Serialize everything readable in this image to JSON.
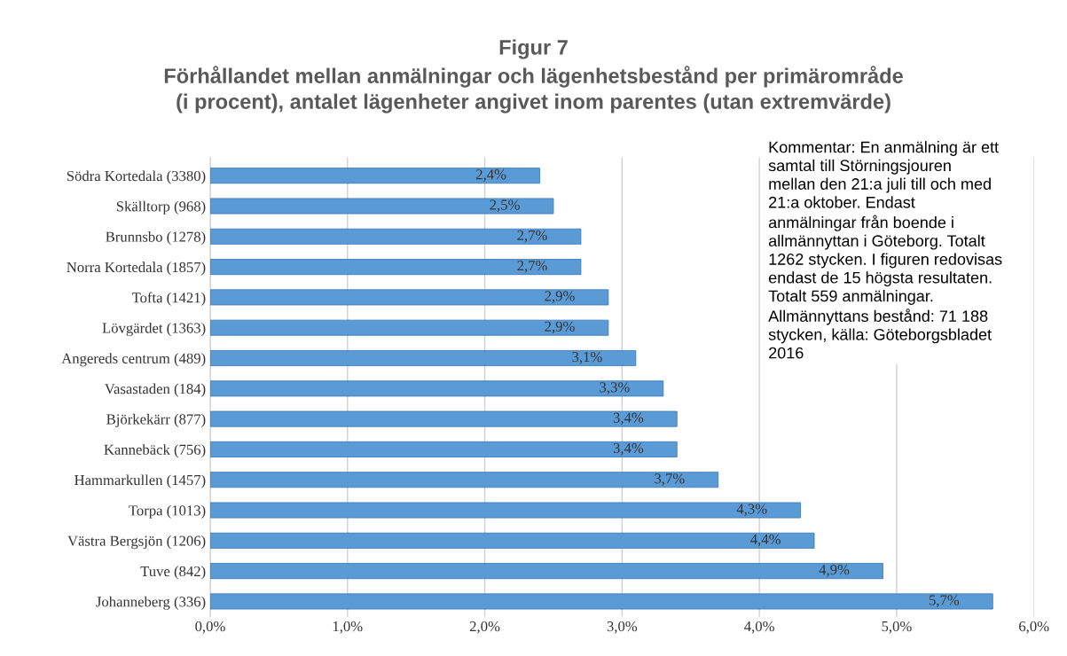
{
  "chart_data": {
    "type": "bar",
    "orientation": "horizontal",
    "title": "Figur 7\nFörhållandet mellan anmälningar och lägenhetsbestånd per primärområde\n(i procent), antalet lägenheter angivet inom parentes (utan extremvärde)",
    "categories": [
      "Södra Kortedala (3380)",
      "Skälltorp (968)",
      "Brunnsbo (1278)",
      "Norra Kortedala (1857)",
      "Tofta (1421)",
      "Lövgärdet (1363)",
      "Angereds centrum (489)",
      "Vasastaden (184)",
      "Björkekärr (877)",
      "Kannebäck (756)",
      "Hammarkullen (1457)",
      "Torpa (1013)",
      "Västra Bergsjön (1206)",
      "Tuve (842)",
      "Johanneberg (336)"
    ],
    "values": [
      2.4,
      2.5,
      2.7,
      2.7,
      2.9,
      2.9,
      3.1,
      3.3,
      3.4,
      3.4,
      3.7,
      4.3,
      4.4,
      4.9,
      5.7
    ],
    "value_labels": [
      "2,4%",
      "2,5%",
      "2,7%",
      "2,7%",
      "2,9%",
      "2,9%",
      "3,1%",
      "3,3%",
      "3,4%",
      "3,4%",
      "3,7%",
      "4,3%",
      "4,4%",
      "4,9%",
      "5,7%"
    ],
    "color": "#5b9bd5",
    "xlim": [
      0,
      6
    ],
    "xticks": [
      {
        "value": 0,
        "label": "0,0%"
      },
      {
        "value": 1,
        "label": "1,0%"
      },
      {
        "value": 2,
        "label": "2,0%"
      },
      {
        "value": 3,
        "label": "3,0%"
      },
      {
        "value": 4,
        "label": "4,0%"
      },
      {
        "value": 5,
        "label": "5,0%"
      },
      {
        "value": 6,
        "label": "6,0%"
      }
    ],
    "grid": "x",
    "annotations": [
      "Kommentar: En anmälning är ett\nsamtal till Störningsjouren\nmellan den 21:a juli till och med\n21:a oktober. Endast\nanmälningar från boende i\nallmännyttan i Göteborg. Totalt\n1262 stycken. I figuren redovisas\nendast de 15 högsta resultaten.\nTotalt 559 anmälningar.\nAllmännyttans bestånd: 71 188\nstycken, källa: Göteborgsbladet\n2016"
    ]
  }
}
